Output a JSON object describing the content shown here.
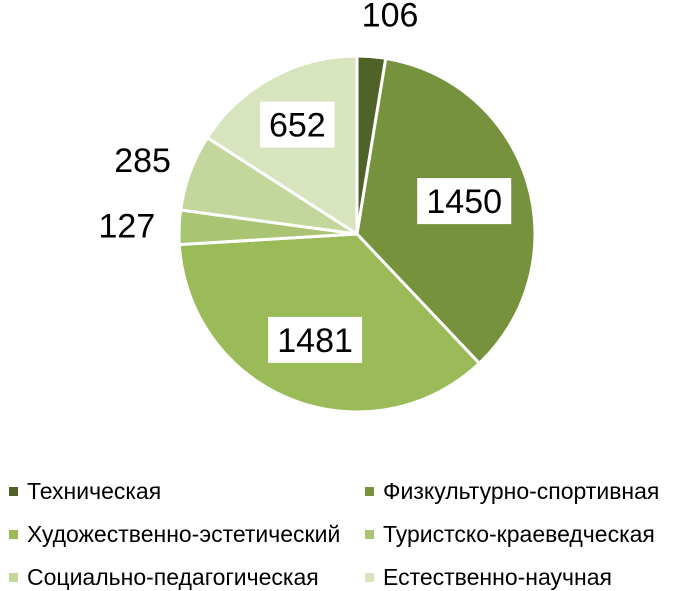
{
  "chart_data": {
    "type": "pie",
    "title": "",
    "start_angle_deg": 0,
    "direction": "clockwise",
    "legend_position": "bottom",
    "slices": [
      {
        "label": "Техническая",
        "value": 106,
        "color": "#4f6228"
      },
      {
        "label": "Физкультурно-спортивная",
        "value": 1450,
        "color": "#76923c"
      },
      {
        "label": "Художественно-эстетический",
        "value": 1481,
        "color": "#9bbb59"
      },
      {
        "label": "Туристско-краеведческая",
        "value": 127,
        "color": "#a9c573"
      },
      {
        "label": "Социально-педагогическая",
        "value": 285,
        "color": "#c3d69b"
      },
      {
        "label": "Естественно-научная",
        "value": 652,
        "color": "#d7e4bd"
      }
    ]
  }
}
